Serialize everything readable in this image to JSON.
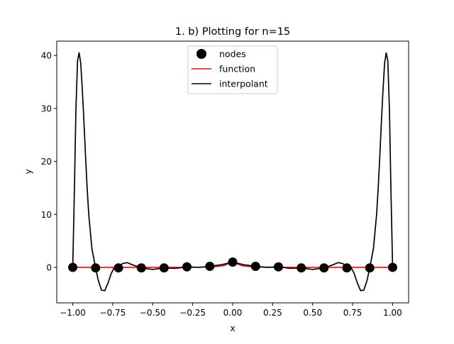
{
  "chart_data": {
    "type": "line",
    "title": "1. b) Plotting for n=15",
    "xlabel": "x",
    "ylabel": "y",
    "xlim": [
      -1.1,
      1.1
    ],
    "ylim": [
      -6.7,
      42.7
    ],
    "xticks": [
      -1.0,
      -0.75,
      -0.5,
      -0.25,
      0.0,
      0.25,
      0.5,
      0.75,
      1.0
    ],
    "xtick_labels": [
      "−1.00",
      "−0.75",
      "−0.50",
      "−0.25",
      "0.00",
      "0.25",
      "0.50",
      "0.75",
      "1.00"
    ],
    "yticks": [
      0,
      10,
      20,
      30,
      40
    ],
    "ytick_labels": [
      "0",
      "10",
      "20",
      "30",
      "40"
    ],
    "grid": false,
    "legend_position": "top-center",
    "series": [
      {
        "name": "nodes",
        "kind": "scatter",
        "color": "#000000",
        "x": [
          -1.0,
          -0.857,
          -0.714,
          -0.571,
          -0.429,
          -0.286,
          -0.143,
          0.0,
          0.143,
          0.286,
          0.429,
          0.571,
          0.714,
          0.857,
          1.0
        ],
        "y": [
          0.0,
          -0.1,
          -0.1,
          -0.1,
          -0.1,
          0.1,
          0.2,
          1.0,
          0.2,
          0.1,
          -0.1,
          -0.1,
          -0.1,
          -0.1,
          0.0
        ]
      },
      {
        "name": "function",
        "kind": "line",
        "color": "#ff0000",
        "x": [
          -1.0,
          -0.25,
          -0.12,
          -0.06,
          0.0,
          0.06,
          0.12,
          0.25,
          1.0
        ],
        "y": [
          0.0,
          0.0,
          0.1,
          0.3,
          1.0,
          0.3,
          0.1,
          0.0,
          0.0
        ]
      },
      {
        "name": "interpolant",
        "kind": "line",
        "color": "#000000",
        "x": [
          -1.0,
          -0.99,
          -0.98,
          -0.97,
          -0.96,
          -0.95,
          -0.94,
          -0.93,
          -0.92,
          -0.91,
          -0.9,
          -0.88,
          -0.857,
          -0.84,
          -0.82,
          -0.8,
          -0.78,
          -0.76,
          -0.74,
          -0.714,
          -0.69,
          -0.66,
          -0.62,
          -0.571,
          -0.5,
          -0.429,
          -0.36,
          -0.286,
          -0.21,
          -0.143,
          -0.07,
          0.0,
          0.07,
          0.143,
          0.21,
          0.286,
          0.36,
          0.429,
          0.5,
          0.571,
          0.62,
          0.66,
          0.69,
          0.714,
          0.74,
          0.76,
          0.78,
          0.8,
          0.82,
          0.84,
          0.857,
          0.88,
          0.9,
          0.91,
          0.92,
          0.93,
          0.94,
          0.95,
          0.96,
          0.97,
          0.98,
          0.99,
          1.0
        ],
        "y": [
          0.0,
          14.0,
          30.0,
          39.0,
          40.5,
          38.5,
          33.5,
          27.5,
          21.0,
          15.0,
          10.0,
          3.5,
          -0.1,
          -2.5,
          -4.3,
          -4.4,
          -3.0,
          -1.2,
          0.0,
          -0.1,
          0.7,
          0.9,
          0.4,
          -0.1,
          -0.4,
          -0.1,
          -0.2,
          0.1,
          0.0,
          0.2,
          0.5,
          1.0,
          0.5,
          0.2,
          0.0,
          0.1,
          -0.2,
          -0.1,
          -0.4,
          -0.1,
          0.4,
          0.9,
          0.7,
          -0.1,
          0.0,
          -1.2,
          -3.0,
          -4.4,
          -4.3,
          -2.5,
          -0.1,
          3.5,
          10.0,
          15.0,
          21.0,
          27.5,
          33.5,
          38.5,
          40.5,
          39.0,
          30.0,
          14.0,
          0.0
        ]
      }
    ]
  }
}
